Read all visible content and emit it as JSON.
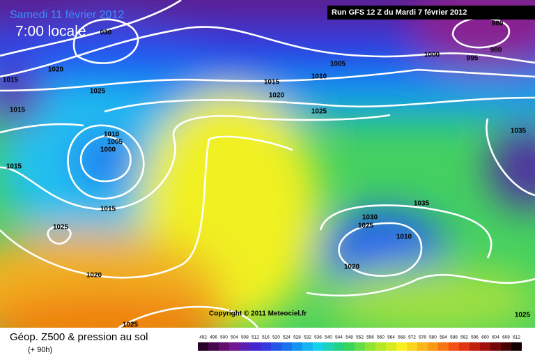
{
  "header": {
    "date": "Samedi 11 février 2012",
    "time": "7:00 locale",
    "run": "Run GFS 12 Z du Mardi 7 février 2012"
  },
  "isobar_labels": [
    "030",
    "1020",
    "1015",
    "1025",
    "1015",
    "1010",
    "1005",
    "1000",
    "1015",
    "1015",
    "1025",
    "1020",
    "1025",
    "1005",
    "1010",
    "1015",
    "1020",
    "1025",
    "1000",
    "995",
    "980",
    "980",
    "1035",
    "1035",
    "1030",
    "1025",
    "1020",
    "1010",
    "1025"
  ],
  "copyright": "Copyright © 2011 Meteociel.fr",
  "footer": {
    "title": "Géop. Z500 & pression au sol",
    "lead": "(+ 90h)"
  },
  "scale": [
    492,
    496,
    500,
    504,
    508,
    512,
    516,
    520,
    524,
    528,
    532,
    536,
    540,
    544,
    548,
    552,
    556,
    560,
    564,
    568,
    572,
    576,
    580,
    584,
    588,
    592,
    596,
    600,
    604,
    608,
    612
  ]
}
